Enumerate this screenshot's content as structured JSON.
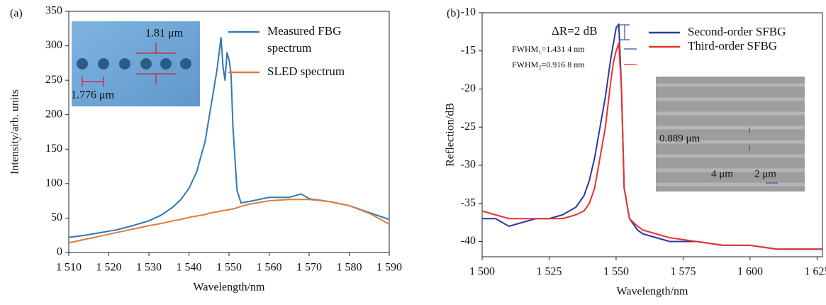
{
  "chart_data": [
    {
      "type": "line",
      "panel_label": "(a)",
      "xlabel": "Wavelength/nm",
      "ylabel": "Intensity/arb. units",
      "xlim": [
        1510,
        1590
      ],
      "ylim": [
        0,
        350
      ],
      "xticks": [
        {
          "value": 1510,
          "label": "1 510"
        },
        {
          "value": 1520,
          "label": "1 520"
        },
        {
          "value": 1530,
          "label": "1 530"
        },
        {
          "value": 1540,
          "label": "1 540"
        },
        {
          "value": 1550,
          "label": "1 550"
        },
        {
          "value": 1560,
          "label": "1 560"
        },
        {
          "value": 1570,
          "label": "1 570"
        },
        {
          "value": 1580,
          "label": "1 580"
        },
        {
          "value": 1590,
          "label": "1 590"
        }
      ],
      "yticks": [
        0,
        50,
        100,
        150,
        200,
        250,
        300,
        350
      ],
      "legend": "upper right",
      "x": [
        1510,
        1514,
        1518,
        1522,
        1526,
        1530,
        1533,
        1536,
        1538,
        1540,
        1542,
        1543,
        1544,
        1545,
        1546,
        1547,
        1548,
        1548.5,
        1549,
        1549.5,
        1550,
        1550.5,
        1551,
        1552,
        1553,
        1555,
        1560,
        1565,
        1568,
        1570,
        1575,
        1580,
        1585,
        1590
      ],
      "series": [
        {
          "name": "Measured FBG spectrum",
          "color": "#2f78b8",
          "values": [
            22,
            25,
            29,
            33,
            39,
            46,
            54,
            66,
            77,
            93,
            118,
            140,
            160,
            195,
            230,
            265,
            312,
            270,
            250,
            290,
            280,
            260,
            180,
            90,
            72,
            74,
            80,
            80,
            85,
            78,
            74,
            68,
            58,
            48
          ]
        },
        {
          "name": "SLED spectrum",
          "color": "#e07b39",
          "values": [
            14,
            19,
            24,
            29,
            34,
            39,
            42,
            46,
            48,
            51,
            53,
            54,
            55,
            57,
            58,
            59,
            60,
            61,
            61,
            62,
            62,
            63,
            63,
            65,
            67,
            70,
            75,
            77,
            77,
            77,
            74,
            68,
            57,
            41
          ]
        }
      ],
      "annotations": [
        {
          "text": "1.81 μm",
          "color": "#d0202b"
        },
        {
          "text": "1.776 μm",
          "color": "#d0202b"
        }
      ]
    },
    {
      "type": "line",
      "panel_label": "(b)",
      "xlabel": "Wavelength/nm",
      "ylabel": "Reflection/dB",
      "xlim": [
        1500,
        1627
      ],
      "ylim": [
        -42,
        -10
      ],
      "xticks": [
        {
          "value": 1500,
          "label": "1 500"
        },
        {
          "value": 1525,
          "label": "1 525"
        },
        {
          "value": 1550,
          "label": "1 550"
        },
        {
          "value": 1575,
          "label": "1 575"
        },
        {
          "value": 1600,
          "label": "1 600"
        },
        {
          "value": 1625,
          "label": "1 625"
        }
      ],
      "yticks": [
        -40,
        -35,
        -30,
        -25,
        -20,
        -15,
        -10
      ],
      "legend": "upper right",
      "x": [
        1500,
        1505,
        1510,
        1515,
        1520,
        1525,
        1530,
        1535,
        1538,
        1540,
        1542,
        1544,
        1546,
        1548,
        1549,
        1550,
        1551,
        1552,
        1553,
        1555,
        1558,
        1560,
        1565,
        1570,
        1580,
        1590,
        1600,
        1610,
        1620,
        1627
      ],
      "series": [
        {
          "name": "Second-order SFBG",
          "color": "#2b3a99",
          "values": [
            -37,
            -37,
            -38,
            -37.5,
            -37,
            -37,
            -36.5,
            -35.5,
            -34,
            -32,
            -29,
            -25,
            -21,
            -16,
            -14,
            -12,
            -11.5,
            -20,
            -33,
            -37,
            -38.5,
            -39,
            -39.5,
            -40,
            -40,
            -40.5,
            -40.5,
            -41,
            -41,
            -41
          ]
        },
        {
          "name": "Third-order SFBG",
          "color": "#e8342f",
          "values": [
            -36,
            -36.5,
            -37,
            -37,
            -37,
            -37,
            -37,
            -36.5,
            -36,
            -35,
            -33,
            -29,
            -25,
            -19,
            -16.5,
            -15,
            -14,
            -20,
            -33,
            -37,
            -38,
            -38.5,
            -39,
            -39.5,
            -40,
            -40.5,
            -40.5,
            -41,
            -41,
            -41
          ]
        }
      ],
      "annotations": [
        {
          "text": "ΔR=2 dB",
          "color": "#2d4fa0"
        },
        {
          "text": "FWHM₁=1.431 4 nm",
          "color": "#2d4fa0"
        },
        {
          "text": "FWHM₂=0.916 8 nm",
          "color": "#e8342f"
        },
        {
          "text": "0.889 μm",
          "color": "#2d5fa8"
        },
        {
          "text": "4 μm",
          "color": "#2d5fa8"
        },
        {
          "text": "2 μm",
          "color": "#2d5fa8"
        }
      ]
    }
  ]
}
